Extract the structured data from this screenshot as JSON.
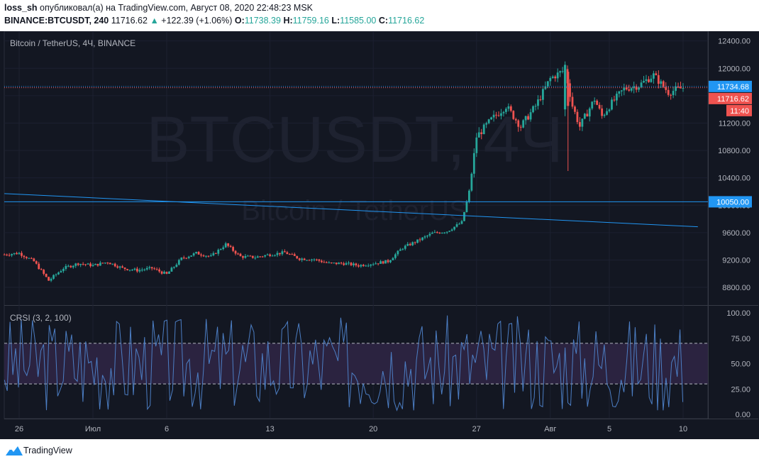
{
  "header": {
    "author": "loss_sh",
    "published_text": "опубликовал(а) на TradingView.com, Август 08, 2020 22:48:23 MSK",
    "symbol": "BINANCE:BTCUSDT, 240",
    "last": "11716.62",
    "change": "+122.39 (+1.06%)",
    "open_label": "O:",
    "open": "11738.39",
    "high_label": "H:",
    "high": "11759.16",
    "low_label": "L:",
    "low": "11585.00",
    "close_label": "C:",
    "close": "11716.62"
  },
  "footer": {
    "brand": "TradingView"
  },
  "colors": {
    "background": "#131722",
    "up": "#26a69a",
    "down": "#ef5350",
    "line": "#2196f3",
    "rsi": "#4c7ec4",
    "rsi_band": "#2b2340"
  },
  "chart_data": [
    {
      "type": "candlestick",
      "title": "Bitcoin / TetherUS, 4Ч, BINANCE",
      "watermark": "BTCUSDT, 4Ч",
      "watermark_sub": "Bitcoin / TetherUS",
      "ylim": [
        8500,
        12500
      ],
      "yticks": [
        "12400.00",
        "12000.00",
        "11600.00",
        "11200.00",
        "10800.00",
        "10400.00",
        "10000.00",
        "9600.00",
        "9200.00",
        "8800.00"
      ],
      "xticks": [
        {
          "label": "26",
          "day": 0
        },
        {
          "label": "Июл",
          "day": 5
        },
        {
          "label": "6",
          "day": 10
        },
        {
          "label": "13",
          "day": 17
        },
        {
          "label": "20",
          "day": 24
        },
        {
          "label": "27",
          "day": 31
        },
        {
          "label": "Авг",
          "day": 36
        },
        {
          "label": "5",
          "day": 40
        },
        {
          "label": "10",
          "day": 45
        }
      ],
      "price_labels": [
        {
          "text": "11734.68",
          "value": 11734.68,
          "color": "#2196f3"
        },
        {
          "text": "11716.62",
          "value": 11716.62,
          "color": "#ef5350"
        },
        {
          "text": "11:40",
          "value": 11590,
          "color": "#ef5350"
        },
        {
          "text": "10050.00",
          "value": 10050,
          "color": "#2196f3"
        }
      ],
      "hlines": [
        {
          "value": 11734.68,
          "style": "dotted",
          "color": "#2196f3"
        },
        {
          "value": 11716.62,
          "style": "dotted",
          "color": "#ef5350"
        },
        {
          "value": 10050,
          "style": "solid",
          "color": "#2196f3"
        }
      ],
      "trendline": {
        "from": {
          "day": -1,
          "value": 10170
        },
        "to": {
          "day": 46,
          "value": 9685
        }
      },
      "anchors": [
        [
          -1,
          9280
        ],
        [
          0,
          9300
        ],
        [
          1,
          9180
        ],
        [
          2,
          8900
        ],
        [
          3,
          9080
        ],
        [
          4,
          9150
        ],
        [
          5,
          9120
        ],
        [
          6,
          9170
        ],
        [
          7,
          9080
        ],
        [
          8,
          9050
        ],
        [
          9,
          9080
        ],
        [
          10,
          8990
        ],
        [
          11,
          9220
        ],
        [
          12,
          9300
        ],
        [
          13,
          9250
        ],
        [
          14,
          9430
        ],
        [
          15,
          9250
        ],
        [
          16,
          9240
        ],
        [
          17,
          9280
        ],
        [
          18,
          9310
        ],
        [
          19,
          9220
        ],
        [
          20,
          9210
        ],
        [
          21,
          9150
        ],
        [
          22,
          9150
        ],
        [
          23,
          9120
        ],
        [
          24,
          9150
        ],
        [
          25,
          9180
        ],
        [
          26,
          9380
        ],
        [
          27,
          9480
        ],
        [
          28,
          9590
        ],
        [
          29,
          9620
        ],
        [
          30,
          9750
        ],
        [
          30.5,
          10200
        ],
        [
          31,
          11000
        ],
        [
          32,
          11250
        ],
        [
          33,
          11450
        ],
        [
          34,
          11150
        ],
        [
          35,
          11450
        ],
        [
          36,
          11850
        ],
        [
          37,
          11980
        ],
        [
          37.5,
          11450
        ],
        [
          38,
          11150
        ],
        [
          39,
          11550
        ],
        [
          39.5,
          11300
        ],
        [
          40,
          11450
        ],
        [
          41,
          11700
        ],
        [
          42,
          11750
        ],
        [
          43,
          11900
        ],
        [
          44,
          11650
        ],
        [
          45,
          11716.62
        ]
      ],
      "events": [
        {
          "day": 37,
          "value": 12100
        },
        {
          "day": 37.2,
          "value": 10500
        },
        {
          "day": 2.6,
          "value": 8830
        },
        {
          "day": 43.2,
          "value": 11300
        }
      ]
    },
    {
      "type": "line",
      "title": "CRSI (3, 2, 100)",
      "ylim": [
        0,
        100
      ],
      "yticks": [
        "100.00",
        "75.00",
        "50.00",
        "25.00",
        "0.00"
      ],
      "bands": [
        30,
        70
      ]
    }
  ]
}
